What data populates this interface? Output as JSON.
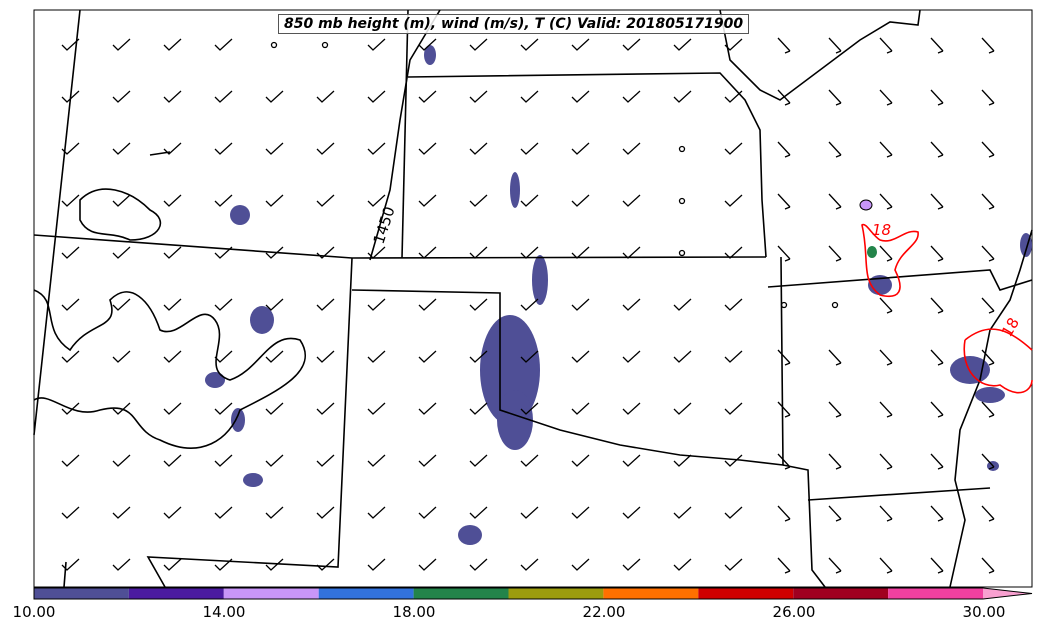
{
  "title": "850 mb height (m), wind (m/s), T (C) Valid: 201805171900",
  "contour_labels": {
    "height": "1450",
    "temp_a": "18",
    "temp_b": "18"
  },
  "colorbar": {
    "ticks": [
      "10.00",
      "14.00",
      "18.00",
      "22.00",
      "26.00",
      "30.00"
    ],
    "colors": [
      "#4f4f96",
      "#4b1ba0",
      "#c896f8",
      "#3272dc",
      "#23844a",
      "#9c9c0e",
      "#ff7000",
      "#d00000",
      "#a00020",
      "#f040a0"
    ],
    "extend_color": "#f8a0d0"
  }
}
